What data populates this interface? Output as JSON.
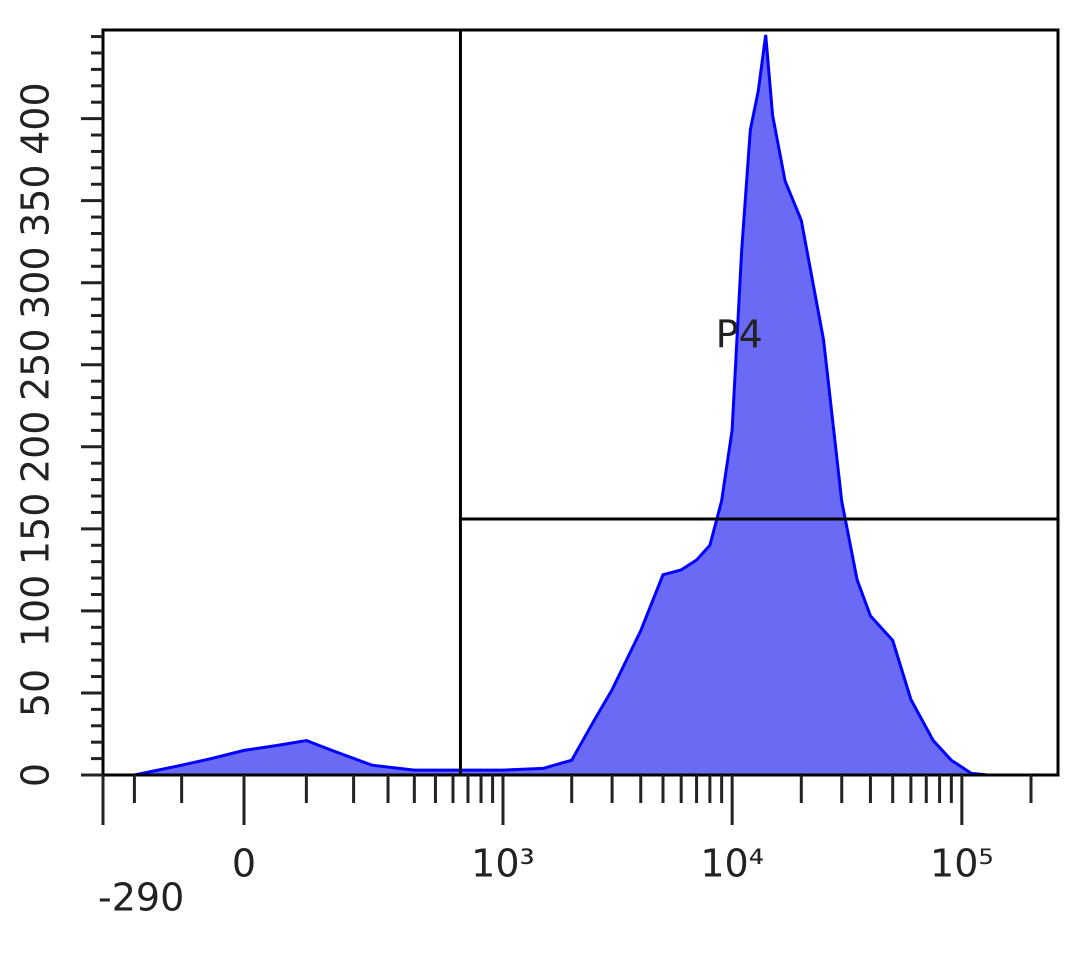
{
  "chart_data": {
    "type": "histogram-area",
    "x": [
      -200,
      -100,
      -50,
      0,
      50,
      100,
      150,
      250,
      400,
      600,
      1000,
      1500,
      2000,
      2500,
      3000,
      4000,
      5000,
      6000,
      7000,
      8000,
      9000,
      10000,
      11000,
      12000,
      13000,
      14000,
      15000,
      17000,
      20000,
      25000,
      30000,
      35000,
      40000,
      50000,
      60000,
      75000,
      90000,
      110000,
      130000
    ],
    "values": [
      0,
      6,
      10,
      15,
      18,
      21,
      15,
      6,
      3,
      3,
      3,
      4,
      9,
      33,
      52,
      88,
      122,
      125,
      131,
      140,
      167,
      210,
      320,
      393,
      417,
      451,
      402,
      362,
      338,
      265,
      167,
      119,
      97,
      82,
      46,
      21,
      9,
      1,
      0
    ],
    "color": "#0000ff",
    "fill": "#6a6af5",
    "xscale": "biexponential",
    "xlim": [
      -290,
      262144
    ],
    "xticks": [
      {
        "value": -290,
        "label": "-290"
      },
      0,
      {
        "value": 1000,
        "label": "10³"
      },
      {
        "value": 10000,
        "label": "10⁴"
      },
      {
        "value": 100000,
        "label": "10⁵"
      }
    ],
    "xminorticks": [
      -200,
      -100,
      100,
      200,
      300,
      400,
      500,
      600,
      700,
      800,
      900,
      2000,
      3000,
      4000,
      5000,
      6000,
      7000,
      8000,
      9000,
      20000,
      30000,
      40000,
      50000,
      60000,
      70000,
      80000,
      90000,
      200000
    ],
    "ylim": [
      0,
      454
    ],
    "yticks": [
      0,
      50,
      100,
      150,
      200,
      250,
      300,
      350,
      400
    ],
    "yminorticks": [
      10,
      20,
      30,
      40,
      60,
      70,
      80,
      90,
      110,
      120,
      130,
      140,
      160,
      170,
      180,
      190,
      210,
      220,
      230,
      240,
      260,
      270,
      280,
      290,
      310,
      320,
      330,
      340,
      360,
      370,
      380,
      390,
      410,
      420,
      430,
      440,
      450
    ],
    "gate": {
      "label": "P4",
      "x": 648,
      "y": 156
    }
  }
}
